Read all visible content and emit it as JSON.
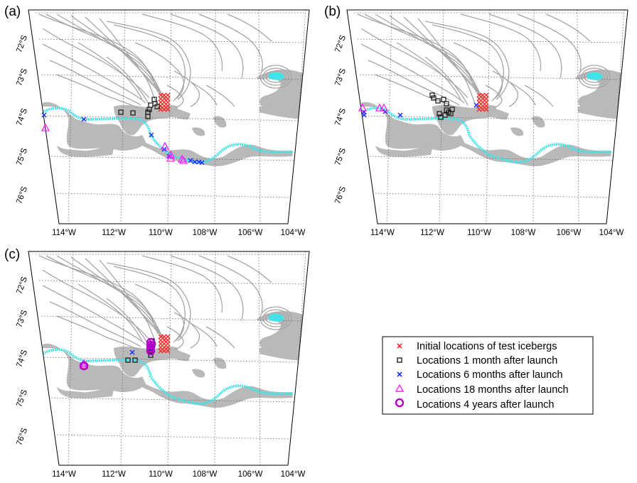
{
  "panels": [
    {
      "id": "a",
      "label": "(a)"
    },
    {
      "id": "b",
      "label": "(b)"
    },
    {
      "id": "c",
      "label": "(c)"
    }
  ],
  "lat_labels": [
    "72°S",
    "73°S",
    "74°S",
    "75°S",
    "76°S"
  ],
  "lon_labels": [
    "114°W",
    "112°W",
    "110°W",
    "108°W",
    "106°W",
    "104°W"
  ],
  "legend": {
    "entries": [
      {
        "key": "initial",
        "label": "Initial locations of test icebergs",
        "marker": "x",
        "color": "#ff2a2a"
      },
      {
        "key": "m1",
        "label": "Locations 1 month after launch",
        "marker": "square",
        "color": "#111111"
      },
      {
        "key": "m6",
        "label": "Locations 6 months after launch",
        "marker": "x",
        "color": "#1a2bff"
      },
      {
        "key": "m18",
        "label": "Locations 18 months after launch",
        "marker": "triangle",
        "color": "#ff22ff"
      },
      {
        "key": "y4",
        "label": "Locations 4 years after launch",
        "marker": "circle",
        "color": "#b400c8"
      }
    ]
  },
  "colors": {
    "coast_track": "#3fe4ea",
    "land_gray": "#b9b9b9",
    "contour": "#a6a6a6",
    "grid": "#666666"
  }
}
